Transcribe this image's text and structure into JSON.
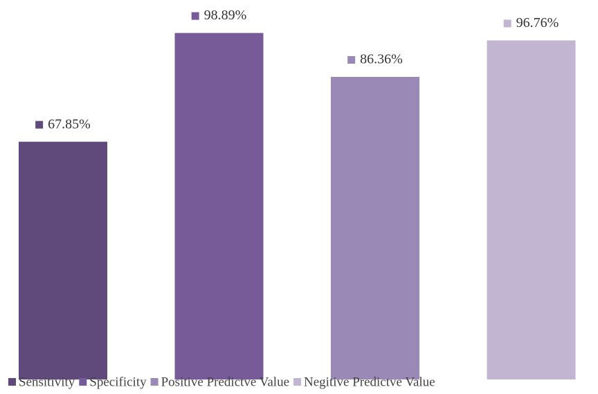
{
  "chart_data": {
    "type": "bar",
    "categories": [
      "Sensitivity",
      "Specificity",
      "Positive Predictve Value",
      "Negitive Predictve Value"
    ],
    "values": [
      67.85,
      98.89,
      86.36,
      96.76
    ],
    "value_labels": [
      "67.85%",
      "98.89%",
      "86.36%",
      "96.76%"
    ],
    "colors": [
      "#5f4a7b",
      "#775b98",
      "#9a89b6",
      "#c2b5d1"
    ],
    "legend": "bottom"
  }
}
